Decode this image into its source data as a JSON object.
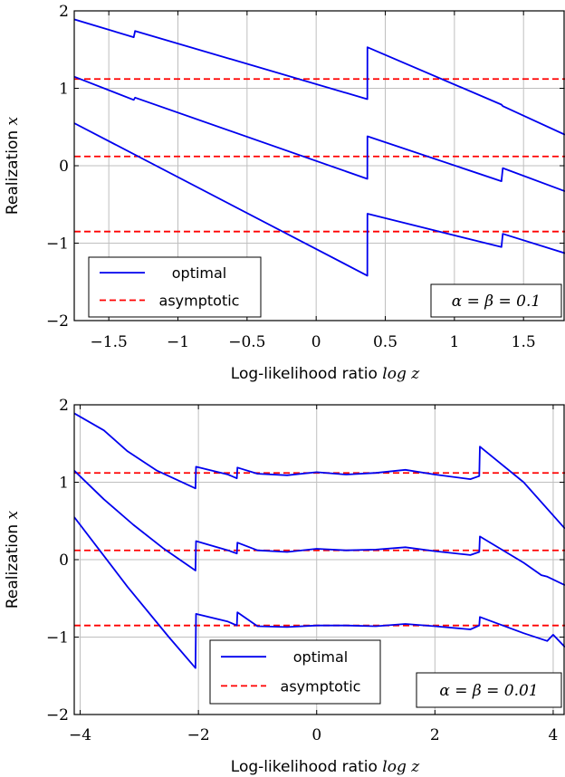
{
  "colors": {
    "optimal": "#0000ee",
    "asymptotic": "#ff0000",
    "grid": "#bfbfbf",
    "frame": "#000000"
  },
  "chart_data": [
    {
      "type": "line",
      "title": "",
      "xlabel_text": "Log-likelihood ratio ",
      "xlabel_math": "log z",
      "ylabel_text": "Realization ",
      "ylabel_math": "x",
      "xlim": [
        -1.75,
        1.8
      ],
      "ylim": [
        -2,
        2
      ],
      "xticks": [
        -1.5,
        -1,
        -0.5,
        0,
        0.5,
        1,
        1.5
      ],
      "xtick_labels": [
        "−1.5",
        "−1",
        "−0.5",
        "0",
        "0.5",
        "1",
        "1.5"
      ],
      "yticks": [
        -2,
        -1,
        0,
        1,
        2
      ],
      "ytick_labels": [
        "−2",
        "−1",
        "0",
        "1",
        "2"
      ],
      "grid": true,
      "legend_placement": "bottom-left",
      "legend": [
        "optimal",
        "asymptotic"
      ],
      "annotation": "α = β = 0.1",
      "asymptotic_levels": [
        1.12,
        0.12,
        -0.85
      ],
      "series": [
        {
          "name": "optimal",
          "x": [
            -1.75,
            -1.32,
            -1.31,
            0.37,
            0.371,
            1.34,
            1.35,
            1.8
          ],
          "y": [
            1.89,
            1.66,
            1.74,
            0.86,
            1.53,
            0.79,
            0.77,
            0.4
          ]
        },
        {
          "name": "optimal",
          "x": [
            -1.75,
            -1.32,
            -1.31,
            0.37,
            0.371,
            1.34,
            1.35,
            1.8
          ],
          "y": [
            1.15,
            0.85,
            0.88,
            -0.17,
            0.38,
            -0.2,
            -0.03,
            -0.33
          ]
        },
        {
          "name": "optimal",
          "x": [
            -1.75,
            0.37,
            0.371,
            1.34,
            1.35,
            1.8
          ],
          "y": [
            0.55,
            -1.42,
            -0.62,
            -1.05,
            -0.88,
            -1.13
          ]
        }
      ]
    },
    {
      "type": "line",
      "title": "",
      "xlabel_text": "Log-likelihood ratio ",
      "xlabel_math": "log z",
      "ylabel_text": "Realization ",
      "ylabel_math": "x",
      "xlim": [
        -4.1,
        4.2
      ],
      "ylim": [
        -2,
        2
      ],
      "xticks": [
        -4,
        -2,
        0,
        2,
        4
      ],
      "xtick_labels": [
        "−4",
        "−2",
        "0",
        "2",
        "4"
      ],
      "yticks": [
        -2,
        -1,
        0,
        1,
        2
      ],
      "ytick_labels": [
        "−2",
        "−1",
        "0",
        "1",
        "2"
      ],
      "grid": true,
      "legend_placement": "bottom-center",
      "legend": [
        "optimal",
        "asymptotic"
      ],
      "annotation": "α = β = 0.01",
      "asymptotic_levels": [
        1.12,
        0.12,
        -0.85
      ],
      "series": [
        {
          "name": "optimal",
          "x": [
            -4.1,
            -3.6,
            -3.2,
            -2.7,
            -2.05,
            -2.04,
            -1.5,
            -1.35,
            -1.34,
            -1.0,
            -0.5,
            0.0,
            0.5,
            1.0,
            1.5,
            2.0,
            2.6,
            2.75,
            2.76,
            3.5,
            4.2
          ],
          "y": [
            1.89,
            1.67,
            1.4,
            1.15,
            0.92,
            1.2,
            1.1,
            1.05,
            1.19,
            1.11,
            1.09,
            1.13,
            1.1,
            1.12,
            1.16,
            1.1,
            1.04,
            1.08,
            1.46,
            1.0,
            0.4
          ]
        },
        {
          "name": "optimal",
          "x": [
            -4.1,
            -3.6,
            -3.1,
            -2.6,
            -2.05,
            -2.04,
            -1.5,
            -1.35,
            -1.34,
            -1.0,
            -0.5,
            0.0,
            0.5,
            1.0,
            1.5,
            2.0,
            2.6,
            2.75,
            2.76,
            3.5,
            3.8,
            3.9,
            4.2
          ],
          "y": [
            1.15,
            0.78,
            0.45,
            0.15,
            -0.14,
            0.24,
            0.12,
            0.08,
            0.22,
            0.12,
            0.1,
            0.14,
            0.12,
            0.13,
            0.16,
            0.11,
            0.06,
            0.1,
            0.3,
            -0.04,
            -0.2,
            -0.22,
            -0.33
          ]
        },
        {
          "name": "optimal",
          "x": [
            -4.1,
            -3.2,
            -2.5,
            -2.05,
            -2.04,
            -1.5,
            -1.35,
            -1.34,
            -1.0,
            -0.5,
            0.0,
            0.5,
            1.0,
            1.5,
            2.0,
            2.6,
            2.75,
            2.76,
            3.5,
            3.9,
            4.0,
            4.2
          ],
          "y": [
            0.55,
            -0.35,
            -1.0,
            -1.4,
            -0.7,
            -0.8,
            -0.85,
            -0.68,
            -0.86,
            -0.87,
            -0.85,
            -0.85,
            -0.86,
            -0.83,
            -0.86,
            -0.9,
            -0.85,
            -0.74,
            -0.95,
            -1.05,
            -0.97,
            -1.13
          ]
        }
      ]
    }
  ]
}
